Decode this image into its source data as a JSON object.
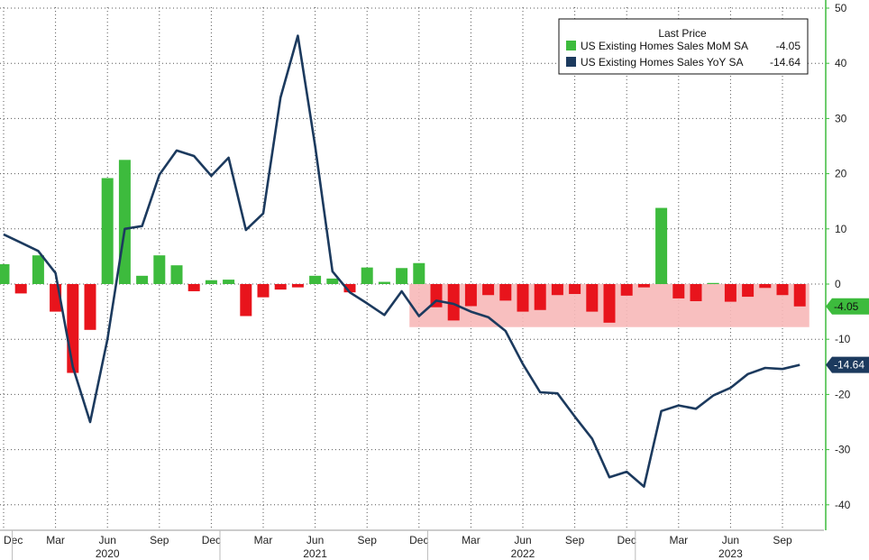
{
  "chart_data": {
    "type": "bar",
    "x": [
      "2019-12",
      "2020-01",
      "2020-02",
      "2020-03",
      "2020-04",
      "2020-05",
      "2020-06",
      "2020-07",
      "2020-08",
      "2020-09",
      "2020-10",
      "2020-11",
      "2020-12",
      "2021-01",
      "2021-02",
      "2021-03",
      "2021-04",
      "2021-05",
      "2021-06",
      "2021-07",
      "2021-08",
      "2021-09",
      "2021-10",
      "2021-11",
      "2021-12",
      "2022-01",
      "2022-02",
      "2022-03",
      "2022-04",
      "2022-05",
      "2022-06",
      "2022-07",
      "2022-08",
      "2022-09",
      "2022-10",
      "2022-11",
      "2022-12",
      "2023-01",
      "2023-02",
      "2023-03",
      "2023-04",
      "2023-05",
      "2023-06",
      "2023-07",
      "2023-08",
      "2023-09",
      "2023-10"
    ],
    "series": [
      {
        "name": "US Existing Homes Sales MoM SA",
        "kind": "bar",
        "color_up": "#3dbb3d",
        "color_down": "#e8141c",
        "last_value": "-4.05",
        "values": [
          3.6,
          -1.7,
          5.2,
          -5.0,
          -16.1,
          -8.3,
          19.2,
          22.5,
          1.5,
          5.2,
          3.4,
          -1.3,
          0.7,
          0.8,
          -5.8,
          -2.4,
          -1.0,
          -0.6,
          1.5,
          1.0,
          -1.5,
          3.0,
          0.4,
          2.9,
          3.8,
          -4.2,
          -6.6,
          -4.0,
          -2.0,
          -3.0,
          -5.0,
          -4.7,
          -2.0,
          -1.8,
          -5.0,
          -7.0,
          -2.1,
          -0.6,
          13.8,
          -2.6,
          -3.1,
          0.2,
          -3.2,
          -2.3,
          -0.7,
          -2.0,
          -4.05
        ]
      },
      {
        "name": "US Existing Homes Sales YoY SA",
        "kind": "line",
        "color": "#1c3a5e",
        "last_value": "-14.64",
        "values": [
          9.0,
          7.5,
          6.0,
          2.0,
          -15.0,
          -25.0,
          -10.0,
          10.0,
          10.5,
          19.8,
          24.2,
          23.2,
          19.6,
          22.9,
          9.8,
          12.8,
          33.8,
          45.0,
          25.0,
          2.3,
          -1.5,
          -3.5,
          -5.6,
          -1.3,
          -5.8,
          -3.0,
          -3.6,
          -5.0,
          -6.0,
          -8.5,
          -14.5,
          -19.6,
          -19.8,
          -24.0,
          -28.0,
          -35.0,
          -34.0,
          -36.7,
          -23.0,
          -22.0,
          -22.6,
          -20.2,
          -18.8,
          -16.3,
          -15.2,
          -15.4,
          -14.64
        ]
      }
    ],
    "ylim": [
      -40,
      50
    ],
    "yticks": [
      "50",
      "40",
      "30",
      "20",
      "10",
      "0",
      "-10",
      "-20",
      "-30",
      "-40"
    ],
    "ytick_values": [
      50,
      40,
      30,
      20,
      10,
      0,
      -10,
      -20,
      -30,
      -40
    ],
    "xticks": [
      {
        "label": "Dec",
        "index": 0
      },
      {
        "label": "Mar",
        "index": 3
      },
      {
        "label": "Jun",
        "index": 6
      },
      {
        "label": "Sep",
        "index": 9
      },
      {
        "label": "Dec",
        "index": 12
      },
      {
        "label": "Mar",
        "index": 15
      },
      {
        "label": "Jun",
        "index": 18
      },
      {
        "label": "Sep",
        "index": 21
      },
      {
        "label": "Dec",
        "index": 24
      },
      {
        "label": "Mar",
        "index": 27
      },
      {
        "label": "Jun",
        "index": 30
      },
      {
        "label": "Sep",
        "index": 33
      },
      {
        "label": "Dec",
        "index": 36
      },
      {
        "label": "Mar",
        "index": 39
      },
      {
        "label": "Jun",
        "index": 42
      },
      {
        "label": "Sep",
        "index": 45
      }
    ],
    "years": [
      {
        "label": "2020",
        "index": 6
      },
      {
        "label": "2021",
        "index": 18
      },
      {
        "label": "2022",
        "index": 30
      },
      {
        "label": "2023",
        "index": 42
      }
    ],
    "year_separators": [
      1,
      13,
      25,
      37
    ],
    "highlight_band": {
      "start_index": 24,
      "end_index": 46,
      "y_top": 0,
      "y_bottom": -7.8,
      "color": "#f7b8b8"
    },
    "legend": {
      "title": "Last Price",
      "position": "top-right",
      "entries": [
        {
          "label": "US Existing Homes Sales MoM SA",
          "value": "-4.05",
          "color": "#3dbb3d"
        },
        {
          "label": "US Existing Homes Sales YoY SA",
          "value": "-14.64",
          "color": "#1c3a5e"
        }
      ]
    },
    "axis_color": "#3dbb3d",
    "grid": "dotted"
  }
}
